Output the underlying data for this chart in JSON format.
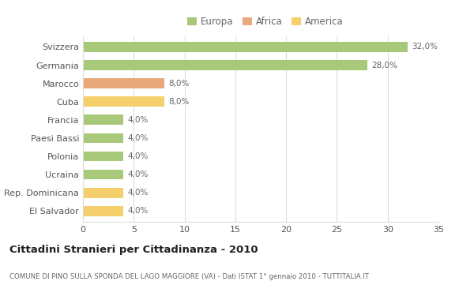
{
  "categories": [
    "El Salvador",
    "Rep. Dominicana",
    "Ucraina",
    "Polonia",
    "Paesi Bassi",
    "Francia",
    "Cuba",
    "Marocco",
    "Germania",
    "Svizzera"
  ],
  "values": [
    4.0,
    4.0,
    4.0,
    4.0,
    4.0,
    4.0,
    8.0,
    8.0,
    28.0,
    32.0
  ],
  "colors": [
    "#F5CF6B",
    "#F5CF6B",
    "#A8C87A",
    "#A8C87A",
    "#A8C87A",
    "#A8C87A",
    "#F5CF6B",
    "#E8A87C",
    "#A8C87A",
    "#A8C87A"
  ],
  "labels": [
    "4,0%",
    "4,0%",
    "4,0%",
    "4,0%",
    "4,0%",
    "4,0%",
    "8,0%",
    "8,0%",
    "28,0%",
    "32,0%"
  ],
  "legend_labels": [
    "Europa",
    "Africa",
    "America"
  ],
  "legend_colors": [
    "#A8C87A",
    "#E8A87C",
    "#F5CF6B"
  ],
  "title": "Cittadini Stranieri per Cittadinanza - 2010",
  "subtitle": "COMUNE DI PINO SULLA SPONDA DEL LAGO MAGGIORE (VA) - Dati ISTAT 1° gennaio 2010 - TUTTITALIA.IT",
  "xlim": [
    0,
    35
  ],
  "xticks": [
    0,
    5,
    10,
    15,
    20,
    25,
    30,
    35
  ],
  "bg_color": "#FFFFFF",
  "grid_color": "#DDDDDD",
  "bar_height": 0.55
}
